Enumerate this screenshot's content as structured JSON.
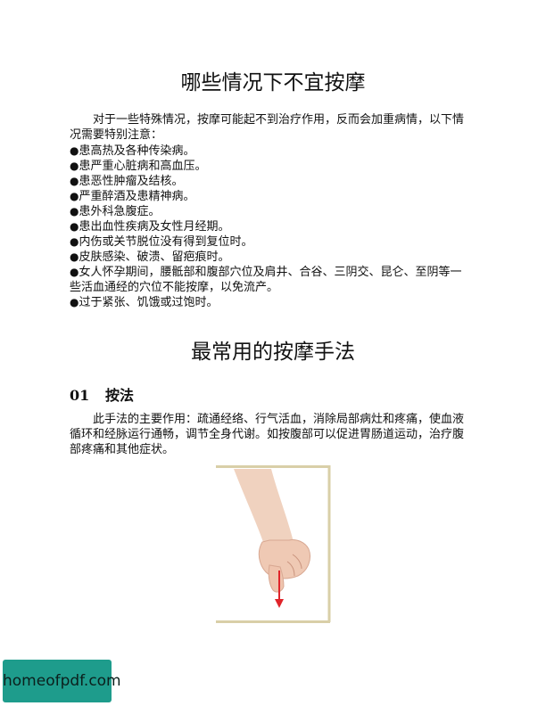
{
  "section1": {
    "title": "哪些情况下不宜按摩",
    "intro": "对于一些特殊情况，按摩可能起不到治疗作用，反而会加重病情，以下情况需要特别注意：",
    "bullet_symbol": "●",
    "items": [
      "患高热及各种传染病。",
      "患严重心脏病和高血压。",
      "患恶性肿瘤及结核。",
      "严重醉酒及患精神病。",
      "患外科急腹症。",
      "患出血性疾病及女性月经期。",
      "内伤或关节脱位没有得到复位时。",
      "皮肤感染、破溃、留疤痕时。",
      "女人怀孕期间，腰骶部和腹部穴位及肩井、合谷、三阴交、昆仑、至阴等一些活血通经的穴位不能按摩，以免流产。",
      "过于紧张、饥饿或过饱时。"
    ]
  },
  "section2": {
    "title": "最常用的按摩手法",
    "subsection": {
      "number": "01",
      "heading": "按法",
      "description": "此手法的主要作用：疏通经络、行气活血，消除局部病灶和疼痛，使血液循环和经脉运行通畅，调节全身代谢。如按腹部可以促进胃肠道运动，治疗腹部疼痛和其他症状。"
    }
  },
  "figure": {
    "icon": "hand-pressing-illustration",
    "frame_color": "#d9cfa8",
    "arrow_color": "#e0242a"
  },
  "watermark": {
    "text": "homeofpdf.com",
    "color": "#1e9c8c"
  }
}
